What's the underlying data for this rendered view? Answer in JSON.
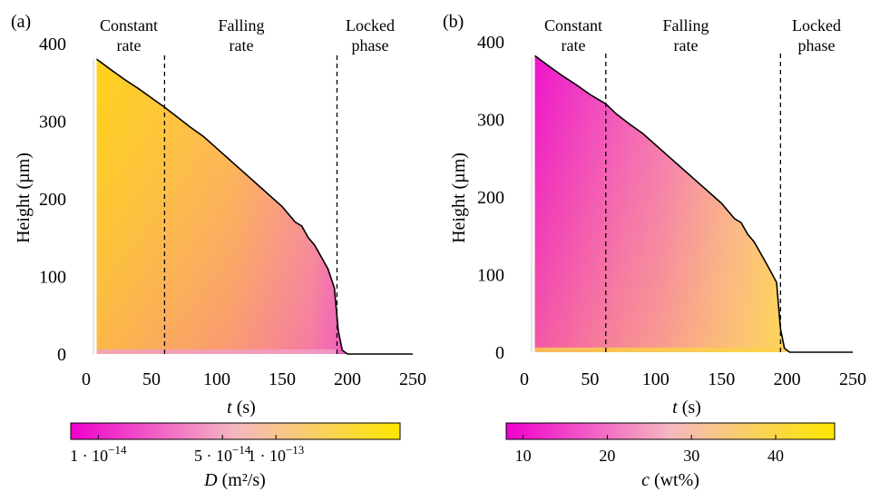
{
  "chart_data": [
    {
      "type": "heatmap",
      "panel_label": "(a)",
      "xlabel_var": "t",
      "xlabel_unit": " (s)",
      "ylabel": "Height (µm)",
      "xlim": [
        0,
        250
      ],
      "ylim": [
        0,
        400
      ],
      "x_ticks": [
        "0",
        "50",
        "100",
        "150",
        "200",
        "250"
      ],
      "y_ticks": [
        "0",
        "100",
        "200",
        "300",
        "400"
      ],
      "phase_lines": [
        60,
        192
      ],
      "phases": [
        {
          "line1": "Constant",
          "line2": "rate"
        },
        {
          "line1": "Falling",
          "line2": "rate"
        },
        {
          "line1": "Locked",
          "line2": "phase"
        }
      ],
      "height_curve": {
        "t": [
          8,
          20,
          30,
          40,
          50,
          60,
          70,
          80,
          90,
          100,
          110,
          120,
          130,
          140,
          150,
          160,
          165,
          170,
          175,
          180,
          185,
          190,
          193,
          196,
          200,
          250
        ],
        "h": [
          380,
          365,
          353,
          342,
          330,
          318,
          305,
          292,
          280,
          265,
          250,
          235,
          220,
          205,
          190,
          170,
          165,
          150,
          140,
          125,
          110,
          85,
          30,
          5,
          0,
          0
        ]
      },
      "colormap": {
        "low": "#ee00cc",
        "mid": "#f5b8c0",
        "high": "#ffe700"
      },
      "fill_level": 0.85,
      "colorbar": {
        "title_var": "D",
        "title_unit": " (m²/s)",
        "scale": "log",
        "ticks": [
          {
            "value": 1e-14,
            "mant": "1 · 10",
            "exp": "−14"
          },
          {
            "value": 5e-14,
            "mant": "5 · 10",
            "exp": "−14"
          },
          {
            "value": 1e-13,
            "mant": "1 · 10",
            "exp": "−13"
          }
        ],
        "range": [
          7e-15,
          5e-13
        ]
      }
    },
    {
      "type": "heatmap",
      "panel_label": "(b)",
      "xlabel_var": "t",
      "xlabel_unit": " (s)",
      "ylabel": "Height (µm)",
      "xlim": [
        0,
        250
      ],
      "ylim": [
        0,
        400
      ],
      "x_ticks": [
        "0",
        "50",
        "100",
        "150",
        "200",
        "250"
      ],
      "y_ticks": [
        "0",
        "100",
        "200",
        "300",
        "400"
      ],
      "phase_lines": [
        62,
        195
      ],
      "phases": [
        {
          "line1": "Constant",
          "line2": "rate"
        },
        {
          "line1": "Falling",
          "line2": "rate"
        },
        {
          "line1": "Locked",
          "line2": "phase"
        }
      ],
      "height_curve": {
        "t": [
          8,
          20,
          30,
          40,
          50,
          62,
          70,
          80,
          90,
          100,
          110,
          120,
          130,
          140,
          150,
          160,
          165,
          170,
          175,
          180,
          185,
          192,
          195,
          198,
          202,
          250
        ],
        "h": [
          382,
          367,
          355,
          344,
          332,
          320,
          307,
          294,
          282,
          267,
          252,
          237,
          222,
          207,
          192,
          172,
          167,
          152,
          142,
          127,
          112,
          90,
          30,
          5,
          0,
          0
        ]
      },
      "colormap": {
        "low": "#ee00cc",
        "mid": "#f5b8c0",
        "high": "#ffe700"
      },
      "fill_level": 0.2,
      "colorbar": {
        "title_var": "c",
        "title_unit": " (wt%)",
        "scale": "linear",
        "ticks": [
          {
            "value": 10,
            "mant": "10",
            "exp": ""
          },
          {
            "value": 20,
            "mant": "20",
            "exp": ""
          },
          {
            "value": 30,
            "mant": "30",
            "exp": ""
          },
          {
            "value": 40,
            "mant": "40",
            "exp": ""
          }
        ],
        "range": [
          8,
          47
        ]
      }
    }
  ]
}
